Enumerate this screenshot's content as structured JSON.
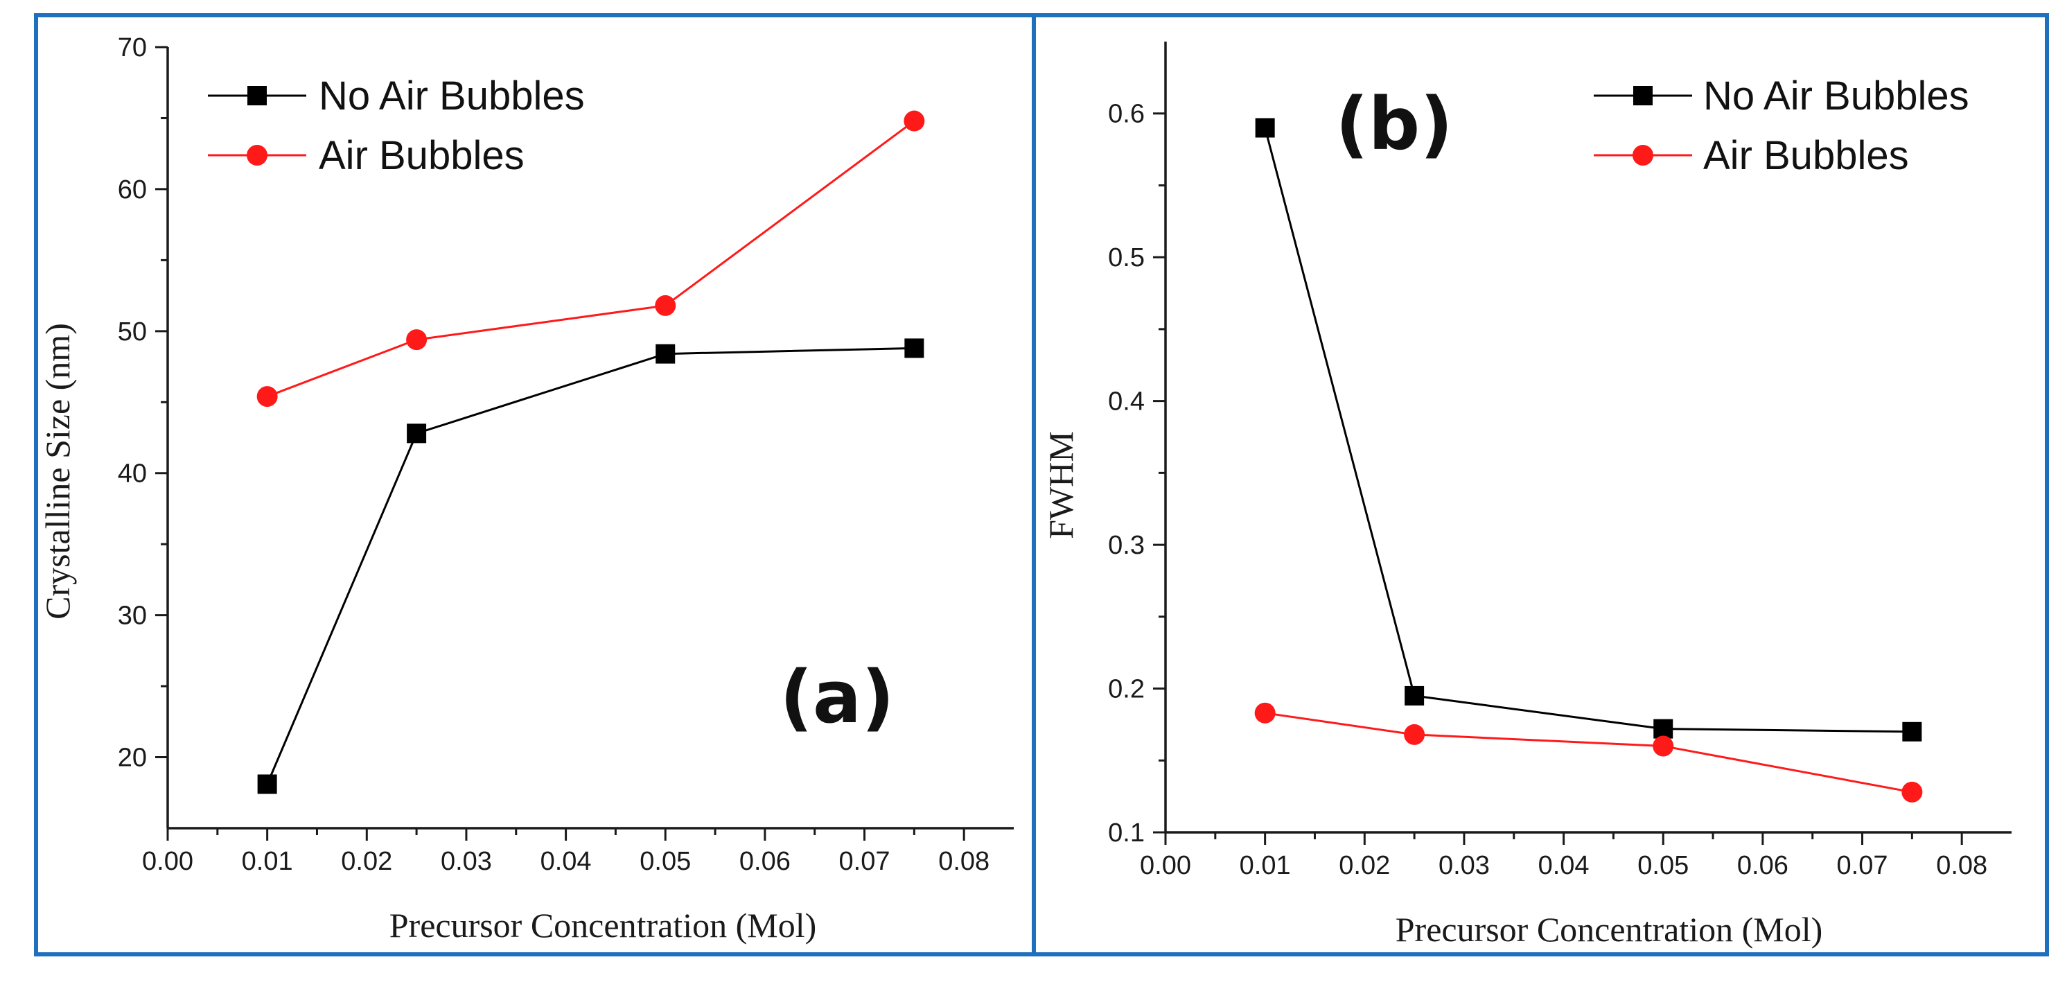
{
  "colors": {
    "border": "#1f6fbf",
    "series_no_air": "#000000",
    "series_air": "#ff1a1a",
    "axis": "#1a1a1a"
  },
  "chart_data": [
    {
      "type": "line",
      "panel_label": "(a)",
      "title": "",
      "xlabel": "Precursor Concentration (Mol)",
      "ylabel": "Crystalline Size (nm)",
      "xlim": [
        0.0,
        0.085
      ],
      "ylim": [
        15,
        70
      ],
      "x_ticks": [
        0.0,
        0.01,
        0.02,
        0.03,
        0.04,
        0.05,
        0.06,
        0.07,
        0.08
      ],
      "x_tick_labels": [
        "0.00",
        "0.01",
        "0.02",
        "0.03",
        "0.04",
        "0.05",
        "0.06",
        "0.07",
        "0.08"
      ],
      "y_ticks": [
        20,
        30,
        40,
        50,
        60,
        70
      ],
      "y_tick_labels": [
        "20",
        "30",
        "40",
        "50",
        "60",
        "70"
      ],
      "x": [
        0.01,
        0.025,
        0.05,
        0.075
      ],
      "series": [
        {
          "name": "No Air Bubbles",
          "marker": "square",
          "color": "#000000",
          "values": [
            18.1,
            42.8,
            48.4,
            48.8
          ]
        },
        {
          "name": "Air Bubbles",
          "marker": "circle",
          "color": "#ff1a1a",
          "values": [
            45.4,
            49.4,
            51.8,
            64.8
          ]
        }
      ],
      "legend": "top-left",
      "grid": false
    },
    {
      "type": "line",
      "panel_label": "(b)",
      "title": "",
      "xlabel": "Precursor Concentration (Mol)",
      "ylabel": "FWHM",
      "xlim": [
        0.0,
        0.085
      ],
      "ylim": [
        0.1,
        0.65
      ],
      "x_ticks": [
        0.0,
        0.01,
        0.02,
        0.03,
        0.04,
        0.05,
        0.06,
        0.07,
        0.08
      ],
      "x_tick_labels": [
        "0.00",
        "0.01",
        "0.02",
        "0.03",
        "0.04",
        "0.05",
        "0.06",
        "0.07",
        "0.08"
      ],
      "y_ticks": [
        0.1,
        0.2,
        0.3,
        0.4,
        0.5,
        0.6
      ],
      "y_tick_labels": [
        "0.1",
        "0.2",
        "0.3",
        "0.4",
        "0.5",
        "0.6"
      ],
      "x": [
        0.01,
        0.025,
        0.05,
        0.075
      ],
      "series": [
        {
          "name": "No Air Bubbles",
          "marker": "square",
          "color": "#000000",
          "values": [
            0.59,
            0.195,
            0.172,
            0.17
          ]
        },
        {
          "name": "Air Bubbles",
          "marker": "circle",
          "color": "#ff1a1a",
          "values": [
            0.183,
            0.168,
            0.16,
            0.128
          ]
        }
      ],
      "legend": "top-right",
      "grid": false
    }
  ]
}
